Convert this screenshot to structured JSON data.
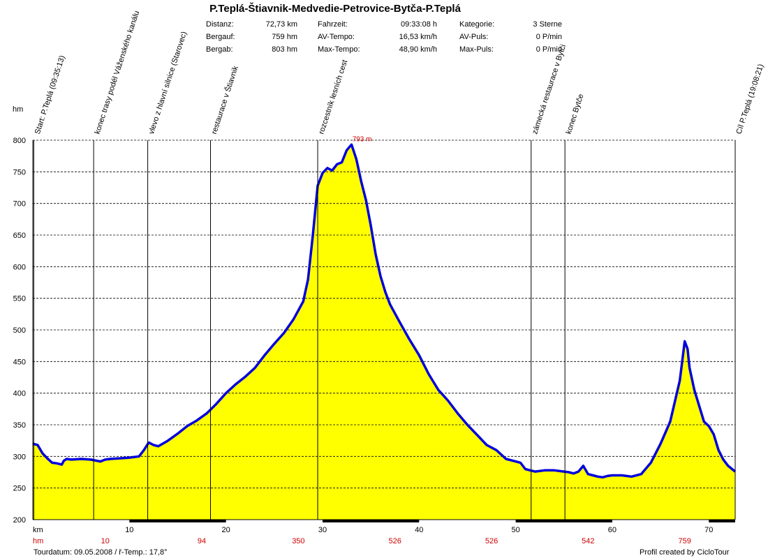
{
  "title": "P.Teplá-Štiavnik-Medvedie-Petrovice-Bytča-P.Teplá",
  "stats": [
    [
      {
        "label": "Distanz:",
        "value": "72,73 km"
      },
      {
        "label": "Fahrzeit:",
        "value": "09:33:08 h"
      },
      {
        "label": "Kategorie:",
        "value": "3 Sterne"
      }
    ],
    [
      {
        "label": "Bergauf:",
        "value": "759 hm"
      },
      {
        "label": "AV-Tempo:",
        "value": "16,53 km/h"
      },
      {
        "label": "AV-Puls:",
        "value": "0 P/min"
      }
    ],
    [
      {
        "label": "Bergab:",
        "value": "803 hm"
      },
      {
        "label": "Max-Tempo:",
        "value": "48,90 km/h"
      },
      {
        "label": "Max-Puls:",
        "value": "0 P/min"
      }
    ]
  ],
  "footer": {
    "tour_date": "Tourdatum: 09.05.2008  /  ř-Temp.: 17,8°",
    "credit": "Profil created by CicloTour"
  },
  "colors": {
    "fill": "#ffff00",
    "line": "#0000dd",
    "grid": "#000000",
    "hm": "#cc0000"
  },
  "chart_data": {
    "type": "area",
    "ylabel": "hm",
    "xlabel": "km",
    "xlim": [
      0,
      72.73
    ],
    "ylim": [
      200,
      800
    ],
    "yticks": [
      200,
      250,
      300,
      350,
      400,
      450,
      500,
      550,
      600,
      650,
      700,
      750,
      800
    ],
    "xticks": [
      10,
      20,
      30,
      40,
      50,
      60,
      70
    ],
    "hm_row_label": "hm",
    "hm_row": [
      {
        "km": 7.5,
        "value": "10"
      },
      {
        "km": 17.5,
        "value": "94"
      },
      {
        "km": 27.5,
        "value": "350"
      },
      {
        "km": 37.5,
        "value": "526"
      },
      {
        "km": 47.5,
        "value": "526"
      },
      {
        "km": 57.5,
        "value": "542"
      },
      {
        "km": 67.5,
        "value": "759"
      }
    ],
    "peak_label": {
      "km": 32.8,
      "elev": 793,
      "text": "793 m"
    },
    "waypoints": [
      {
        "km": 0.1,
        "label": "Start: P.Teplá (09:35:13)"
      },
      {
        "km": 6.3,
        "label": "konec trasy podél Váženského kanálu"
      },
      {
        "km": 11.9,
        "label": "vlevo z hlavní silnice (Starovec)"
      },
      {
        "km": 18.4,
        "label": "restaurace v Štiavnik"
      },
      {
        "km": 29.5,
        "label": "rozcestník lesních cest"
      },
      {
        "km": 51.6,
        "label": "zámecká restaurace v Bytči"
      },
      {
        "km": 55.1,
        "label": "konec Bytče"
      },
      {
        "km": 73.0,
        "label": "Cíl P.Teplá (19:08:21)"
      }
    ],
    "x": [
      0,
      0.5,
      1,
      1.5,
      2,
      2.5,
      3,
      3.2,
      3.5,
      4,
      5,
      6,
      7,
      7.5,
      8,
      9,
      10,
      11,
      11.5,
      12,
      12.5,
      13,
      14,
      15,
      16,
      17,
      18,
      19,
      20,
      21,
      22,
      23,
      24,
      25,
      26,
      27,
      28,
      28.5,
      29,
      29.5,
      30,
      30.5,
      31,
      31.5,
      32,
      32.5,
      33,
      33.5,
      34,
      34.5,
      35,
      35.5,
      36,
      36.5,
      37,
      38,
      39,
      40,
      41,
      42,
      43,
      44,
      45,
      46,
      47,
      48,
      49,
      50,
      50.5,
      51,
      51.5,
      52,
      53,
      54,
      55,
      55.5,
      56,
      56.5,
      57,
      57.5,
      58,
      58.5,
      59,
      59.5,
      60,
      61,
      62,
      63,
      64,
      65,
      66,
      67,
      67.5,
      67.8,
      68,
      68.5,
      69,
      69.5,
      70,
      70.5,
      71,
      71.5,
      72,
      72.73
    ],
    "y": [
      320,
      318,
      305,
      297,
      290,
      289,
      287,
      293,
      296,
      295,
      296,
      295,
      292,
      295,
      296,
      297,
      298,
      300,
      310,
      322,
      318,
      316,
      325,
      336,
      348,
      357,
      368,
      383,
      400,
      414,
      426,
      440,
      460,
      478,
      495,
      517,
      545,
      580,
      650,
      728,
      748,
      756,
      752,
      762,
      765,
      784,
      793,
      770,
      735,
      705,
      665,
      620,
      585,
      560,
      540,
      512,
      485,
      460,
      430,
      405,
      388,
      368,
      350,
      334,
      318,
      310,
      296,
      292,
      290,
      280,
      278,
      276,
      278,
      278,
      276,
      275,
      273,
      276,
      285,
      272,
      270,
      268,
      267,
      269,
      270,
      270,
      268,
      272,
      290,
      320,
      355,
      420,
      482,
      470,
      440,
      405,
      380,
      355,
      348,
      335,
      310,
      295,
      285,
      276
    ]
  }
}
